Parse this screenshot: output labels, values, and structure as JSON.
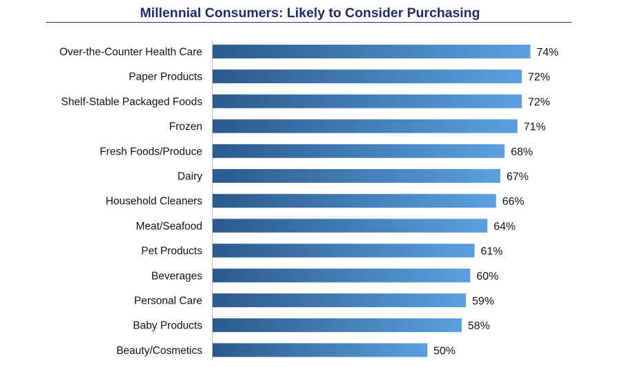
{
  "chart_data": {
    "type": "bar",
    "orientation": "horizontal",
    "title": "Millennial Consumers: Likely to Consider Purchasing",
    "xlabel": "",
    "ylabel": "",
    "categories": [
      "Over-the-Counter Health Care",
      "Paper Products",
      "Shelf-Stable Packaged Foods",
      "Frozen",
      "Fresh Foods/Produce",
      "Dairy",
      "Household Cleaners",
      "Meat/Seafood",
      "Pet Products",
      "Beverages",
      "Personal Care",
      "Baby Products",
      "Beauty/Cosmetics"
    ],
    "values": [
      74,
      72,
      72,
      71,
      68,
      67,
      66,
      64,
      61,
      60,
      59,
      58,
      50
    ],
    "value_labels": [
      "74%",
      "72%",
      "72%",
      "71%",
      "68%",
      "67%",
      "66%",
      "64%",
      "61%",
      "60%",
      "59%",
      "58%",
      "50%"
    ],
    "unit": "%",
    "grid": false,
    "legend": "none",
    "colors": {
      "title": "#1f2a6b",
      "bar_dark": "#2b5a8c",
      "bar_light": "#5aa0e0",
      "axis": "#bbbbbb"
    }
  }
}
